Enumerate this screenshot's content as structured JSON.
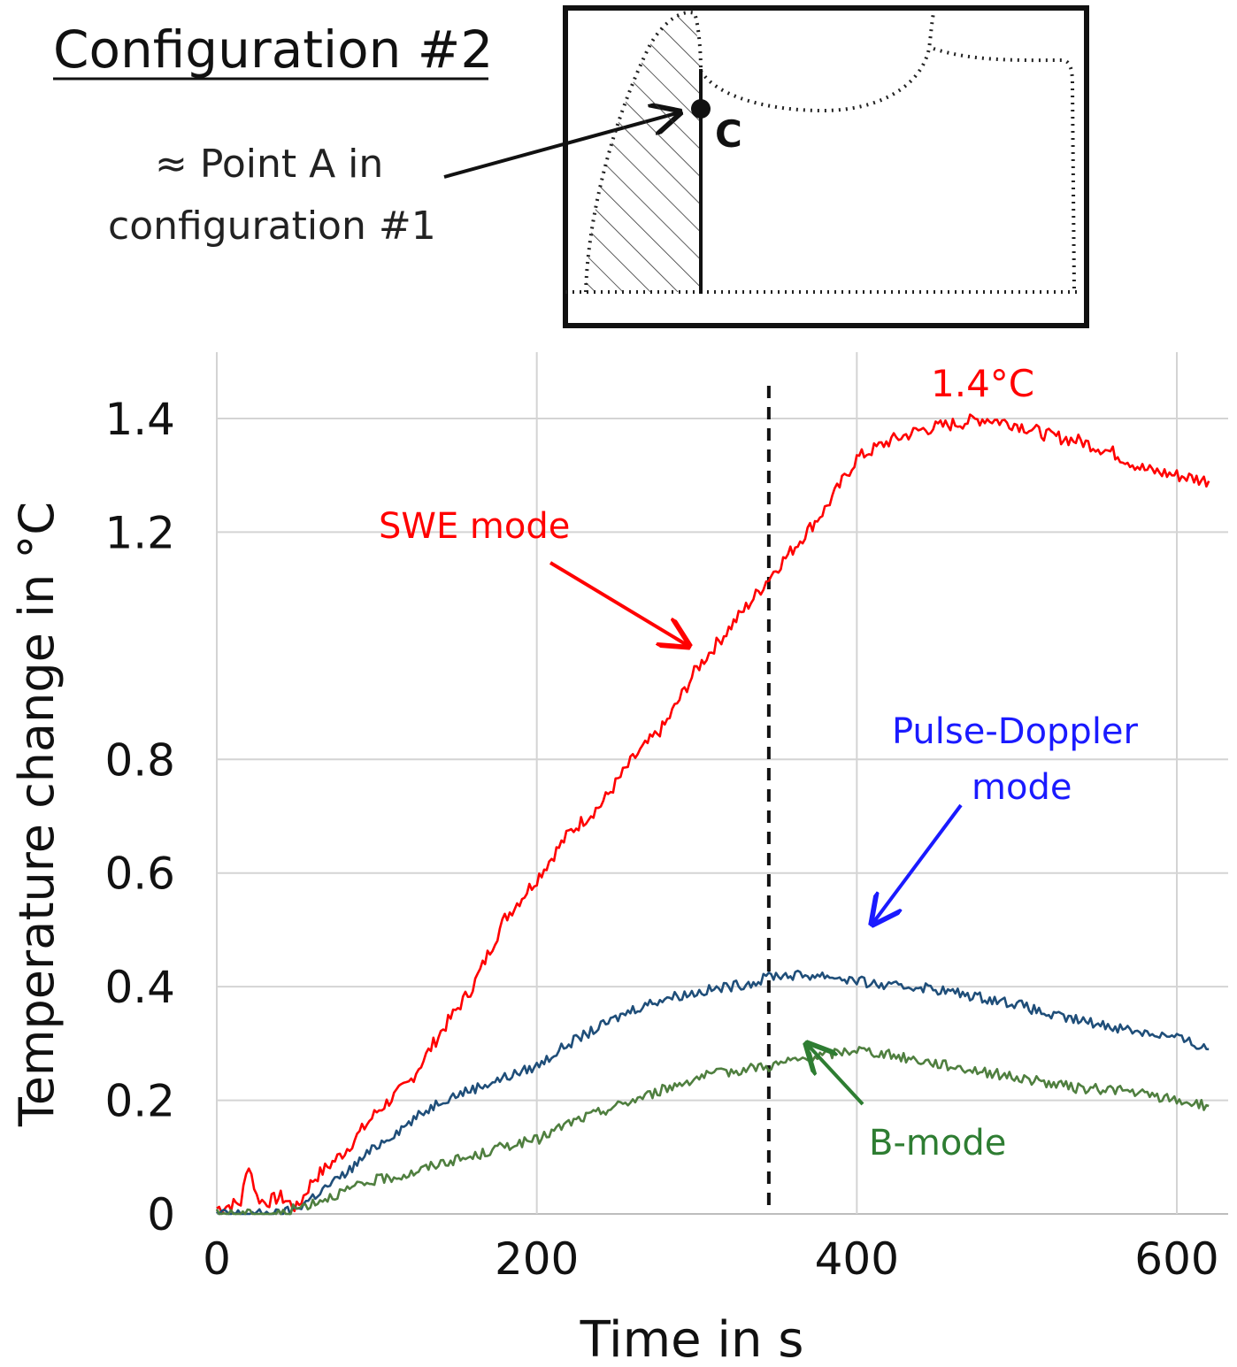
{
  "header": {
    "config_title": "Configuration #2",
    "point_label_line1": "≈ Point A in",
    "point_label_line2": "configuration #1",
    "point_c_label": "C"
  },
  "chart_data": {
    "type": "line",
    "xlabel": "Time in s",
    "ylabel": "Temperature change in °C",
    "xlim": [
      0,
      630
    ],
    "ylim": [
      0,
      1.5
    ],
    "xticks": [
      0,
      200,
      400,
      600
    ],
    "xtick_labels": [
      "0",
      "200",
      "400",
      "600"
    ],
    "yticks": [
      0,
      0.2,
      0.4,
      0.6,
      0.8,
      1.2,
      1.4
    ],
    "ytick_labels": [
      "0",
      "0.2",
      "0.4",
      "0.6",
      "0.8",
      "1.2",
      "1.4"
    ],
    "grid": true,
    "vertical_marker_x": 345,
    "series": [
      {
        "name": "SWE mode",
        "color": "#ff0000",
        "points": [
          [
            0,
            0.01
          ],
          [
            15,
            0.02
          ],
          [
            20,
            0.09
          ],
          [
            25,
            0.03
          ],
          [
            30,
            0.02
          ],
          [
            40,
            0.03
          ],
          [
            50,
            0.01
          ],
          [
            60,
            0.06
          ],
          [
            80,
            0.11
          ],
          [
            100,
            0.18
          ],
          [
            120,
            0.23
          ],
          [
            140,
            0.32
          ],
          [
            160,
            0.4
          ],
          [
            180,
            0.52
          ],
          [
            200,
            0.59
          ],
          [
            220,
            0.67
          ],
          [
            240,
            0.72
          ],
          [
            260,
            0.8
          ],
          [
            280,
            0.86
          ],
          [
            300,
            0.96
          ],
          [
            320,
            1.03
          ],
          [
            340,
            1.1
          ],
          [
            345,
            1.12
          ],
          [
            360,
            1.17
          ],
          [
            380,
            1.24
          ],
          [
            400,
            1.33
          ],
          [
            420,
            1.36
          ],
          [
            440,
            1.38
          ],
          [
            460,
            1.39
          ],
          [
            480,
            1.4
          ],
          [
            500,
            1.39
          ],
          [
            520,
            1.37
          ],
          [
            540,
            1.36
          ],
          [
            560,
            1.34
          ],
          [
            580,
            1.31
          ],
          [
            600,
            1.3
          ],
          [
            620,
            1.29
          ]
        ]
      },
      {
        "name": "Pulse-Doppler mode",
        "color": "#1f4e79",
        "points": [
          [
            0,
            0.0
          ],
          [
            40,
            0.0
          ],
          [
            50,
            0.01
          ],
          [
            60,
            0.03
          ],
          [
            80,
            0.07
          ],
          [
            100,
            0.12
          ],
          [
            120,
            0.16
          ],
          [
            140,
            0.2
          ],
          [
            160,
            0.22
          ],
          [
            180,
            0.24
          ],
          [
            200,
            0.26
          ],
          [
            220,
            0.3
          ],
          [
            240,
            0.33
          ],
          [
            260,
            0.36
          ],
          [
            280,
            0.38
          ],
          [
            300,
            0.39
          ],
          [
            320,
            0.4
          ],
          [
            340,
            0.41
          ],
          [
            345,
            0.42
          ],
          [
            360,
            0.42
          ],
          [
            380,
            0.42
          ],
          [
            400,
            0.41
          ],
          [
            420,
            0.4
          ],
          [
            440,
            0.4
          ],
          [
            460,
            0.39
          ],
          [
            480,
            0.38
          ],
          [
            500,
            0.37
          ],
          [
            520,
            0.35
          ],
          [
            540,
            0.34
          ],
          [
            560,
            0.33
          ],
          [
            580,
            0.32
          ],
          [
            600,
            0.31
          ],
          [
            620,
            0.29
          ]
        ]
      },
      {
        "name": "B-mode",
        "color": "#4f7f3f",
        "points": [
          [
            0,
            0.0
          ],
          [
            40,
            0.0
          ],
          [
            60,
            0.02
          ],
          [
            80,
            0.04
          ],
          [
            100,
            0.06
          ],
          [
            120,
            0.07
          ],
          [
            140,
            0.09
          ],
          [
            160,
            0.1
          ],
          [
            180,
            0.12
          ],
          [
            200,
            0.13
          ],
          [
            220,
            0.16
          ],
          [
            240,
            0.18
          ],
          [
            260,
            0.2
          ],
          [
            280,
            0.22
          ],
          [
            300,
            0.24
          ],
          [
            320,
            0.25
          ],
          [
            340,
            0.26
          ],
          [
            345,
            0.26
          ],
          [
            360,
            0.27
          ],
          [
            380,
            0.28
          ],
          [
            400,
            0.29
          ],
          [
            420,
            0.28
          ],
          [
            440,
            0.27
          ],
          [
            460,
            0.26
          ],
          [
            480,
            0.25
          ],
          [
            500,
            0.24
          ],
          [
            520,
            0.23
          ],
          [
            540,
            0.22
          ],
          [
            560,
            0.22
          ],
          [
            580,
            0.21
          ],
          [
            600,
            0.2
          ],
          [
            620,
            0.19
          ]
        ]
      }
    ],
    "annotations": {
      "peak_label": "1.4°C",
      "swe_label": "SWE mode",
      "pd_label_line1": "Pulse-Doppler",
      "pd_label_line2": "mode",
      "b_label": "B-mode"
    }
  }
}
